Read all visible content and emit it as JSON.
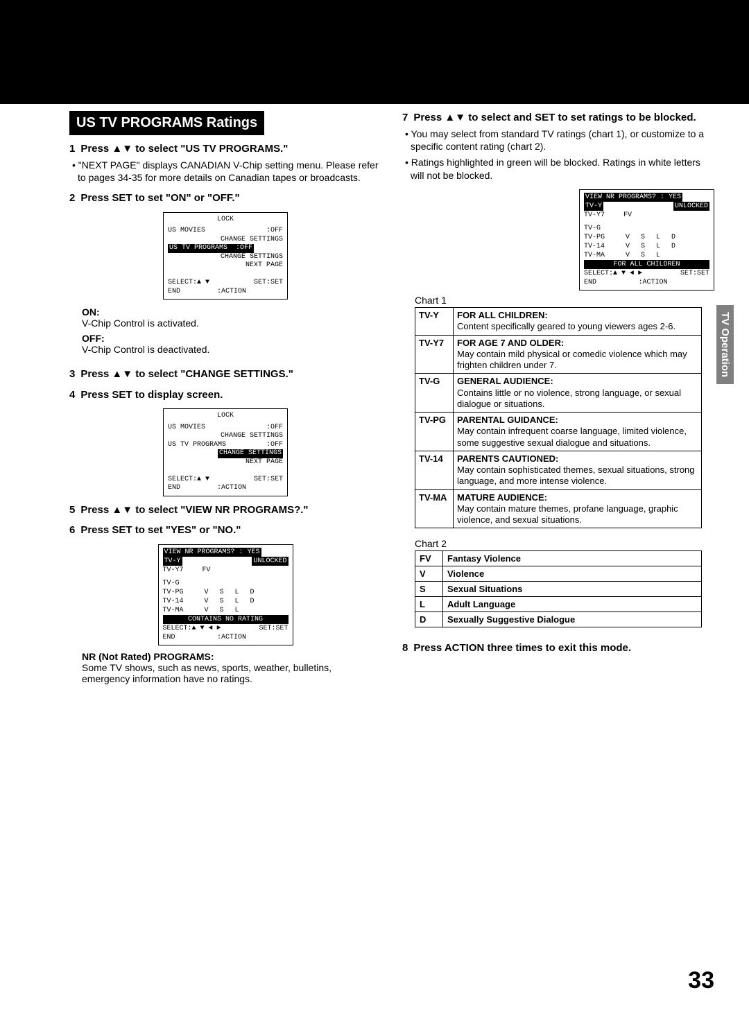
{
  "banner": {
    "title": "US TV PROGRAMS Ratings"
  },
  "sideTab": "TV Operation",
  "pageNumber": "33",
  "steps": {
    "s1": {
      "num": "1",
      "title_pre": "Press ",
      "arrows": "▲▼",
      "title_post": " to select \"US TV PROGRAMS.\"",
      "bullet": "\"NEXT PAGE\" displays CANADIAN V-Chip setting menu. Please refer to pages 34-35 for more details on Canadian tapes or broadcasts."
    },
    "s2": {
      "num": "2",
      "title": "Press SET to set \"ON\" or \"OFF.\""
    },
    "s2_on_label": "ON:",
    "s2_on_text": "V-Chip Control is activated.",
    "s2_off_label": "OFF:",
    "s2_off_text": "V-Chip Control is deactivated.",
    "s3": {
      "num": "3",
      "title_pre": "Press ",
      "arrows": "▲▼",
      "title_post": " to select \"CHANGE SETTINGS.\""
    },
    "s4": {
      "num": "4",
      "title": "Press SET to display screen."
    },
    "s5": {
      "num": "5",
      "title_pre": "Press ",
      "arrows": "▲▼",
      "title_post": " to select \"VIEW NR PROGRAMS?.\""
    },
    "s6": {
      "num": "6",
      "title": "Press SET to set \"YES\" or \"NO.\""
    },
    "nr_label": "NR (Not Rated) PROGRAMS:",
    "nr_text": "Some TV shows, such as news, sports, weather, bulletins, emergency information have no ratings.",
    "s7": {
      "num": "7",
      "title_pre": "Press ",
      "arrows": "▲▼",
      "title_post": " to select and SET to set ratings to be blocked.",
      "b1": "You may select from standard TV ratings (chart 1), or customize to a specific content rating  (chart 2).",
      "b2": "Ratings highlighted in green will be blocked. Ratings in white letters will not be blocked."
    },
    "s8": {
      "num": "8",
      "title": "Press ACTION three times to exit this mode."
    }
  },
  "osd1": {
    "title": "LOCK",
    "r1a": "US MOVIES",
    "r1b": ":OFF",
    "r2": "CHANGE SETTINGS",
    "r3a": "US TV PROGRAMS",
    "r3b": ":OFF",
    "r4": "CHANGE SETTINGS",
    "r5": "NEXT PAGE",
    "f1a": "SELECT:▲ ▼",
    "f1b": "SET:SET",
    "f2a": "END",
    "f2b": ":ACTION"
  },
  "osd3": {
    "title": "VIEW NR PROGRAMS? : YES",
    "tvy": "TV-Y",
    "unlocked": "UNLOCKED",
    "tvy7": "TV-Y7",
    "fv": "FV",
    "tvg": "TV-G",
    "tvpg": "TV-PG",
    "tv14": "TV-14",
    "tvma": "TV-MA",
    "v": "V",
    "s": "S",
    "l": "L",
    "d": "D",
    "bar1": "CONTAINS NO RATING",
    "bar2": "FOR ALL CHILDREN",
    "f1a": "SELECT:▲ ▼ ◄ ►",
    "f1b": "SET:SET",
    "f2a": "END",
    "f2b": ":ACTION"
  },
  "chart1_label": "Chart 1",
  "chart1": [
    {
      "code": "TV-Y",
      "title": "FOR ALL CHILDREN:",
      "desc": "Content specifically geared to young viewers ages 2-6."
    },
    {
      "code": "TV-Y7",
      "title": "FOR AGE 7 AND OLDER:",
      "desc": "May contain mild physical or comedic violence which may frighten children under 7."
    },
    {
      "code": "TV-G",
      "title": "GENERAL AUDIENCE:",
      "desc": "Contains little or no violence, strong language, or sexual dialogue or situations."
    },
    {
      "code": "TV-PG",
      "title": "PARENTAL GUIDANCE:",
      "desc": "May contain infrequent coarse language, limited violence, some suggestive sexual dialogue and situations."
    },
    {
      "code": "TV-14",
      "title": "PARENTS CAUTIONED:",
      "desc": "May contain sophisticated themes, sexual situations, strong language, and more intense violence."
    },
    {
      "code": "TV-MA",
      "title": "MATURE AUDIENCE:",
      "desc": "May contain mature themes, profane language, graphic violence, and sexual situations."
    }
  ],
  "chart2_label": "Chart 2",
  "chart2": [
    {
      "k": "FV",
      "v": "Fantasy Violence"
    },
    {
      "k": "V",
      "v": "Violence"
    },
    {
      "k": "S",
      "v": "Sexual Situations"
    },
    {
      "k": "L",
      "v": "Adult Language"
    },
    {
      "k": "D",
      "v": "Sexually Suggestive Dialogue"
    }
  ]
}
